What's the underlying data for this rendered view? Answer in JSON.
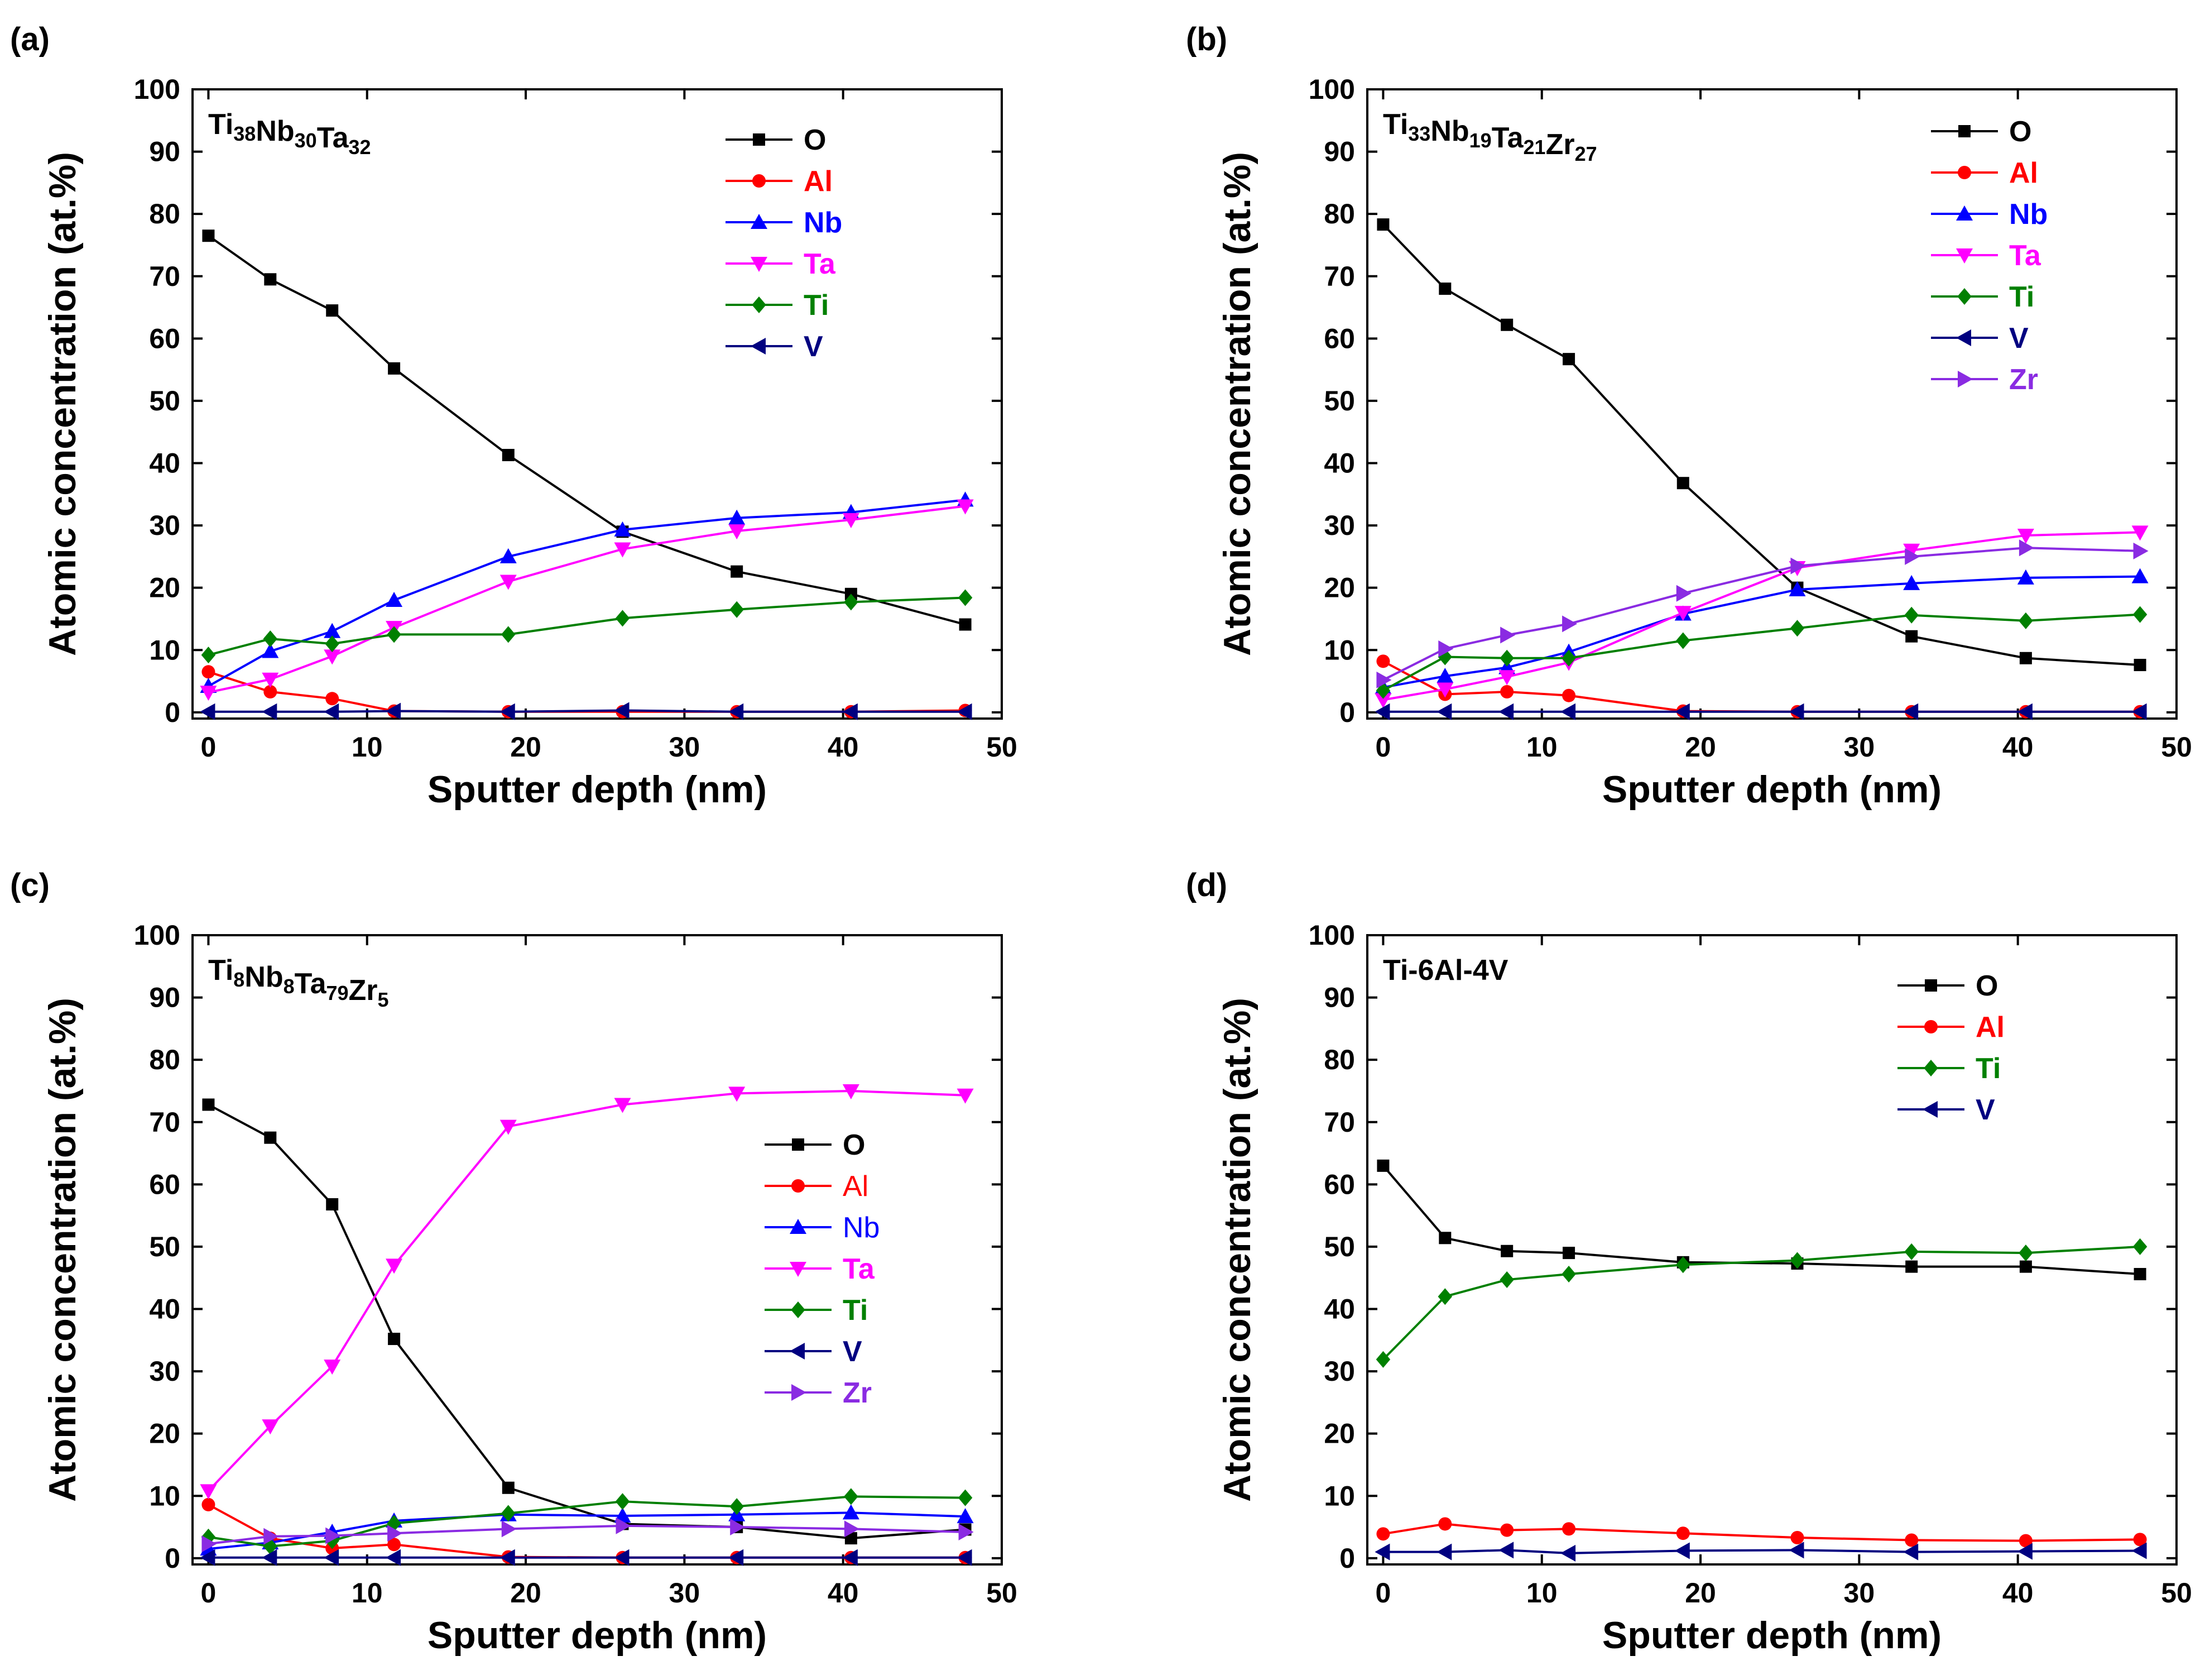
{
  "chart_data": [
    {
      "type": "line",
      "panel_label": "(a)",
      "title": "Ti38Nb30Ta32",
      "title_parts": [
        [
          "Ti",
          ""
        ],
        [
          "38",
          "sub"
        ],
        [
          "Nb",
          ""
        ],
        [
          "30",
          "sub"
        ],
        [
          "Ta",
          ""
        ],
        [
          "32",
          "sub"
        ]
      ],
      "xlabel": "Sputter depth (nm)",
      "ylabel": "Atomic concentration (at.%)",
      "xlim": [
        -1,
        50
      ],
      "ylim": [
        -1,
        100
      ],
      "xticks": [
        0,
        10,
        20,
        30,
        40,
        50
      ],
      "yticks": [
        0,
        10,
        20,
        30,
        40,
        50,
        60,
        70,
        80,
        90,
        100
      ],
      "legend_placement": "top-right",
      "legend_text_style": "colored-bold",
      "x": [
        0,
        3.9,
        7.8,
        11.7,
        18.9,
        26.1,
        33.3,
        40.5,
        47.7
      ],
      "series": [
        {
          "name": "O",
          "color": "#000000",
          "marker": "square",
          "values": [
            76.5,
            69.5,
            64.5,
            55.2,
            41.3,
            29.0,
            22.6,
            19.0,
            14.1
          ]
        },
        {
          "name": "Al",
          "color": "#ff0000",
          "marker": "circle",
          "values": [
            6.5,
            3.3,
            2.2,
            0.2,
            0.1,
            0.1,
            0.1,
            0.1,
            0.3
          ]
        },
        {
          "name": "Nb",
          "color": "#0000ff",
          "marker": "triangle-up",
          "values": [
            4.2,
            9.8,
            13.0,
            18.0,
            25.0,
            29.3,
            31.2,
            32.1,
            34.1
          ]
        },
        {
          "name": "Ta",
          "color": "#ff00ff",
          "marker": "triangle-down",
          "values": [
            3.2,
            5.3,
            9.0,
            13.6,
            21.0,
            26.2,
            29.1,
            30.9,
            33.1
          ]
        },
        {
          "name": "Ti",
          "color": "#008000",
          "marker": "diamond",
          "values": [
            9.2,
            11.8,
            11.0,
            12.5,
            12.5,
            15.1,
            16.5,
            17.7,
            18.4
          ]
        },
        {
          "name": "V",
          "color": "#000080",
          "marker": "triangle-left",
          "values": [
            0.1,
            0.1,
            0.1,
            0.2,
            0.1,
            0.3,
            0.1,
            0.1,
            0.1
          ]
        }
      ]
    },
    {
      "type": "line",
      "panel_label": "(b)",
      "title": "Ti33Nb19Ta21Zr27",
      "title_parts": [
        [
          "Ti",
          ""
        ],
        [
          "33",
          "sub"
        ],
        [
          "Nb",
          ""
        ],
        [
          "19",
          "sub"
        ],
        [
          "Ta",
          ""
        ],
        [
          "21",
          "sub"
        ],
        [
          "Zr",
          ""
        ],
        [
          "27",
          "sub"
        ]
      ],
      "xlabel": "Sputter depth (nm)",
      "ylabel": "Atomic concentration (at.%)",
      "xlim": [
        -1,
        50
      ],
      "ylim": [
        -1,
        100
      ],
      "xticks": [
        0,
        10,
        20,
        30,
        40,
        50
      ],
      "yticks": [
        0,
        10,
        20,
        30,
        40,
        50,
        60,
        70,
        80,
        90,
        100
      ],
      "legend_placement": "top-right",
      "legend_text_style": "colored-bold",
      "x": [
        0,
        3.9,
        7.8,
        11.7,
        18.9,
        26.1,
        33.3,
        40.5,
        47.7
      ],
      "series": [
        {
          "name": "O",
          "color": "#000000",
          "marker": "square",
          "values": [
            78.3,
            68.0,
            62.2,
            56.7,
            36.8,
            20.0,
            12.2,
            8.7,
            7.6
          ]
        },
        {
          "name": "Al",
          "color": "#ff0000",
          "marker": "circle",
          "values": [
            8.2,
            2.9,
            3.3,
            2.7,
            0.2,
            0.1,
            0.1,
            0.1,
            0.1
          ]
        },
        {
          "name": "Nb",
          "color": "#0000ff",
          "marker": "triangle-up",
          "values": [
            4.0,
            5.8,
            7.2,
            9.7,
            15.8,
            19.7,
            20.7,
            21.6,
            21.8
          ]
        },
        {
          "name": "Ta",
          "color": "#ff00ff",
          "marker": "triangle-down",
          "values": [
            2.0,
            3.7,
            5.7,
            8.0,
            16.0,
            23.2,
            26.0,
            28.4,
            28.9
          ]
        },
        {
          "name": "Ti",
          "color": "#008000",
          "marker": "diamond",
          "values": [
            3.5,
            8.9,
            8.7,
            8.7,
            11.5,
            13.5,
            15.6,
            14.7,
            15.7
          ]
        },
        {
          "name": "V",
          "color": "#000080",
          "marker": "triangle-left",
          "values": [
            0.1,
            0.1,
            0.1,
            0.1,
            0.1,
            0.1,
            0.1,
            0.1,
            0.1
          ]
        },
        {
          "name": "Zr",
          "color": "#8a2be2",
          "marker": "triangle-right",
          "values": [
            5.2,
            10.2,
            12.4,
            14.2,
            19.1,
            23.5,
            25.0,
            26.4,
            25.9
          ]
        }
      ]
    },
    {
      "type": "line",
      "panel_label": "(c)",
      "title": "Ti8Nb8Ta79Zr5",
      "title_parts": [
        [
          "Ti",
          ""
        ],
        [
          "8",
          "sub"
        ],
        [
          "Nb",
          ""
        ],
        [
          "8",
          "sub"
        ],
        [
          "Ta",
          ""
        ],
        [
          "79",
          "sub"
        ],
        [
          "Zr",
          ""
        ],
        [
          "5",
          "sub"
        ]
      ],
      "xlabel": "Sputter depth (nm)",
      "ylabel": "Atomic concentration (at.%)",
      "xlim": [
        -1,
        50
      ],
      "ylim": [
        -1,
        100
      ],
      "xticks": [
        0,
        10,
        20,
        30,
        40,
        50
      ],
      "yticks": [
        0,
        10,
        20,
        30,
        40,
        50,
        60,
        70,
        80,
        90,
        100
      ],
      "legend_placement": "center-right",
      "legend_text_style": "colored-mixed",
      "x": [
        0,
        3.9,
        7.8,
        11.7,
        18.9,
        26.1,
        33.3,
        40.5,
        47.7
      ],
      "series": [
        {
          "name": "O",
          "color": "#000000",
          "marker": "square",
          "values": [
            72.8,
            67.5,
            56.8,
            35.2,
            11.3,
            5.5,
            5.0,
            3.2,
            4.6
          ]
        },
        {
          "name": "Al",
          "color": "#ff0000",
          "marker": "circle",
          "values": [
            8.6,
            3.2,
            1.6,
            2.2,
            0.2,
            0.1,
            0.1,
            0.1,
            0.1
          ]
        },
        {
          "name": "Nb",
          "color": "#0000ff",
          "marker": "triangle-up",
          "values": [
            1.5,
            2.5,
            4.2,
            6.0,
            7.0,
            6.8,
            7.0,
            7.3,
            6.7
          ]
        },
        {
          "name": "Ta",
          "color": "#ff00ff",
          "marker": "triangle-down",
          "values": [
            10.8,
            21.2,
            30.8,
            47.0,
            69.3,
            72.8,
            74.6,
            75.0,
            74.3
          ]
        },
        {
          "name": "Ti",
          "color": "#008000",
          "marker": "diamond",
          "values": [
            3.4,
            1.9,
            2.8,
            5.6,
            7.2,
            9.1,
            8.3,
            9.9,
            9.7
          ]
        },
        {
          "name": "V",
          "color": "#000080",
          "marker": "triangle-left",
          "values": [
            0.1,
            0.1,
            0.1,
            0.1,
            0.1,
            0.1,
            0.1,
            0.1,
            0.1
          ]
        },
        {
          "name": "Zr",
          "color": "#8a2be2",
          "marker": "triangle-right",
          "values": [
            2.3,
            3.5,
            3.6,
            4.0,
            4.7,
            5.2,
            5.0,
            4.7,
            4.2
          ]
        }
      ]
    },
    {
      "type": "line",
      "panel_label": "(d)",
      "title": "Ti-6Al-4V",
      "title_parts": [
        [
          "Ti-6Al-4V",
          ""
        ]
      ],
      "xlabel": "Sputter depth (nm)",
      "ylabel": "Atomic concentration (at.%)",
      "xlim": [
        -1,
        50
      ],
      "ylim": [
        -1,
        100
      ],
      "xticks": [
        0,
        10,
        20,
        30,
        40,
        50
      ],
      "yticks": [
        0,
        10,
        20,
        30,
        40,
        50,
        60,
        70,
        80,
        90,
        100
      ],
      "legend_placement": "top-right",
      "legend_text_style": "colored-bold",
      "x": [
        0,
        3.9,
        7.8,
        11.7,
        18.9,
        26.1,
        33.3,
        40.5,
        47.7
      ],
      "series": [
        {
          "name": "O",
          "color": "#000000",
          "marker": "square",
          "values": [
            63.0,
            51.4,
            49.3,
            49.0,
            47.5,
            47.3,
            46.8,
            46.8,
            45.6
          ]
        },
        {
          "name": "Al",
          "color": "#ff0000",
          "marker": "circle",
          "values": [
            3.9,
            5.5,
            4.5,
            4.7,
            4.0,
            3.3,
            2.9,
            2.8,
            3.0
          ]
        },
        {
          "name": "Ti",
          "color": "#008000",
          "marker": "diamond",
          "values": [
            31.9,
            42.0,
            44.7,
            45.6,
            47.1,
            47.8,
            49.2,
            49.0,
            50.0
          ]
        },
        {
          "name": "V",
          "color": "#000080",
          "marker": "triangle-left",
          "values": [
            1.0,
            1.0,
            1.3,
            0.8,
            1.2,
            1.3,
            1.0,
            1.1,
            1.2
          ]
        }
      ]
    }
  ]
}
